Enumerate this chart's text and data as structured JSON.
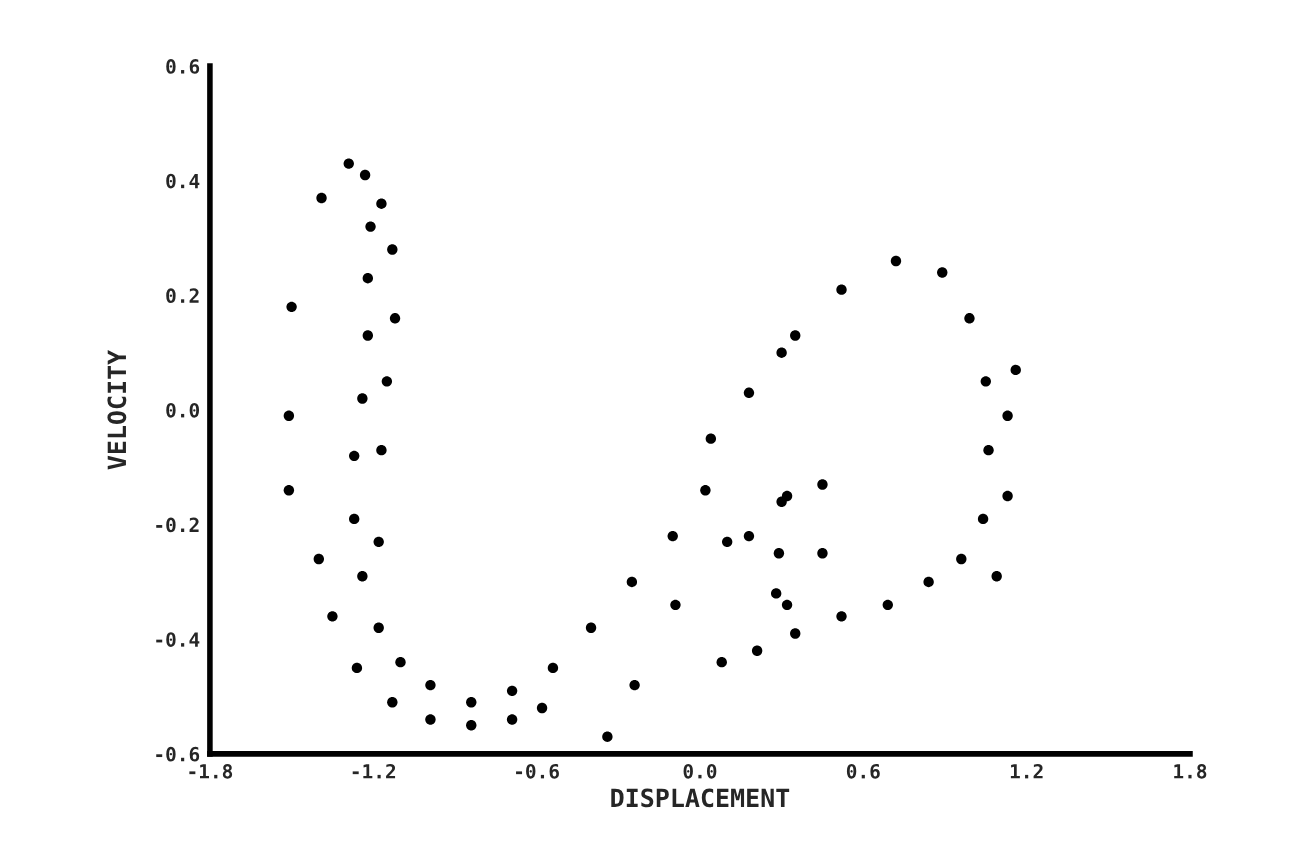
{
  "chart_data": {
    "type": "scatter",
    "xlabel": "DISPLACEMENT",
    "ylabel": "VELOCITY",
    "xlim": [
      -1.8,
      1.8
    ],
    "ylim": [
      -0.6,
      0.6
    ],
    "xticks": [
      {
        "value": -1.8,
        "label": "-1.8"
      },
      {
        "value": -1.2,
        "label": "-1.2"
      },
      {
        "value": -0.6,
        "label": "-0.6"
      },
      {
        "value": 0,
        "label": "0.0"
      },
      {
        "value": 0.6,
        "label": "0.6"
      },
      {
        "value": 1.2,
        "label": "1.2"
      },
      {
        "value": 1.8,
        "label": "1.8"
      }
    ],
    "yticks": [
      {
        "value": -0.6,
        "label": "-0.6"
      },
      {
        "value": -0.4,
        "label": "-0.4"
      },
      {
        "value": -0.2,
        "label": "-0.2"
      },
      {
        "value": 0,
        "label": "0.0"
      },
      {
        "value": 0.2,
        "label": "0.2"
      },
      {
        "value": 0.4,
        "label": "0.4"
      },
      {
        "value": 0.6,
        "label": "0.6"
      }
    ],
    "grid": false,
    "marker": "circle",
    "series": [
      {
        "color": "#000000",
        "x": [
          -1.21,
          -1.22,
          -1.22,
          -1.24,
          -1.27,
          -1.27,
          -1.24,
          -1.18,
          -1.1,
          -0.99,
          -0.84,
          -0.69,
          -0.54,
          -0.4,
          -0.25,
          -0.1,
          0.02,
          0.04,
          0.18,
          0.35,
          0.52,
          0.72,
          0.89,
          0.99,
          1.05,
          1.06,
          1.04,
          0.96,
          0.84,
          0.69,
          0.52,
          0.35,
          0.21,
          0.08,
          0.3,
          0.29,
          0.28,
          0.32,
          -1.4,
          -1.35,
          -1.26,
          -1.13,
          -0.99,
          -0.84,
          -0.69,
          -0.58,
          -1.29,
          -1.23,
          -1.17,
          -1.13,
          -1.12,
          -1.15,
          -1.17,
          -1.18,
          -1.39,
          -1.5,
          -1.51,
          -1.51,
          -0.34,
          -0.24,
          -0.09,
          0.1,
          0.18,
          0.32,
          1.16,
          1.13,
          1.13,
          1.09,
          0.45,
          0.45,
          0.3
        ],
        "values": [
          0.32,
          0.23,
          0.13,
          0.02,
          -0.08,
          -0.19,
          -0.29,
          -0.38,
          -0.44,
          -0.48,
          -0.51,
          -0.49,
          -0.45,
          -0.38,
          -0.3,
          -0.22,
          -0.14,
          -0.05,
          0.03,
          0.13,
          0.21,
          0.26,
          0.24,
          0.16,
          0.05,
          -0.07,
          -0.19,
          -0.26,
          -0.3,
          -0.34,
          -0.36,
          -0.39,
          -0.42,
          -0.44,
          -0.16,
          -0.25,
          -0.32,
          -0.34,
          -0.26,
          -0.36,
          -0.45,
          -0.51,
          -0.54,
          -0.55,
          -0.54,
          -0.52,
          0.43,
          0.41,
          0.36,
          0.28,
          0.16,
          0.05,
          -0.07,
          -0.23,
          0.37,
          0.18,
          -0.01,
          -0.14,
          -0.57,
          -0.48,
          -0.34,
          -0.23,
          -0.22,
          -0.15,
          0.07,
          -0.01,
          -0.15,
          -0.29,
          -0.13,
          -0.25,
          0.1
        ]
      }
    ]
  }
}
